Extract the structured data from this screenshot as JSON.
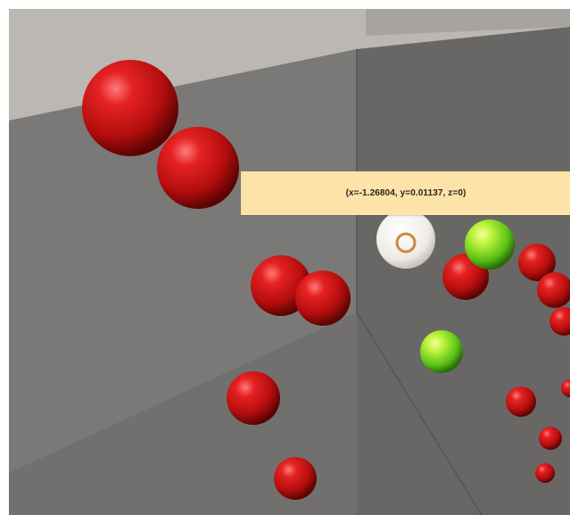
{
  "viewer": {
    "tooltip_text": "(x=-1.26804, y=0.01137, z=0)"
  },
  "colors": {
    "sphere_default": "#d11515",
    "sphere_highlight": "#8be81c",
    "sphere_selected": "#f4f1ec",
    "tooltip_background": "#fde3a7",
    "ceiling": "#bdbab5",
    "left_wall": "#7a7876",
    "right_wall": "#6a6866",
    "floor": "#5f5d5b"
  },
  "icons": {
    "selection_marker": "ring-icon"
  }
}
